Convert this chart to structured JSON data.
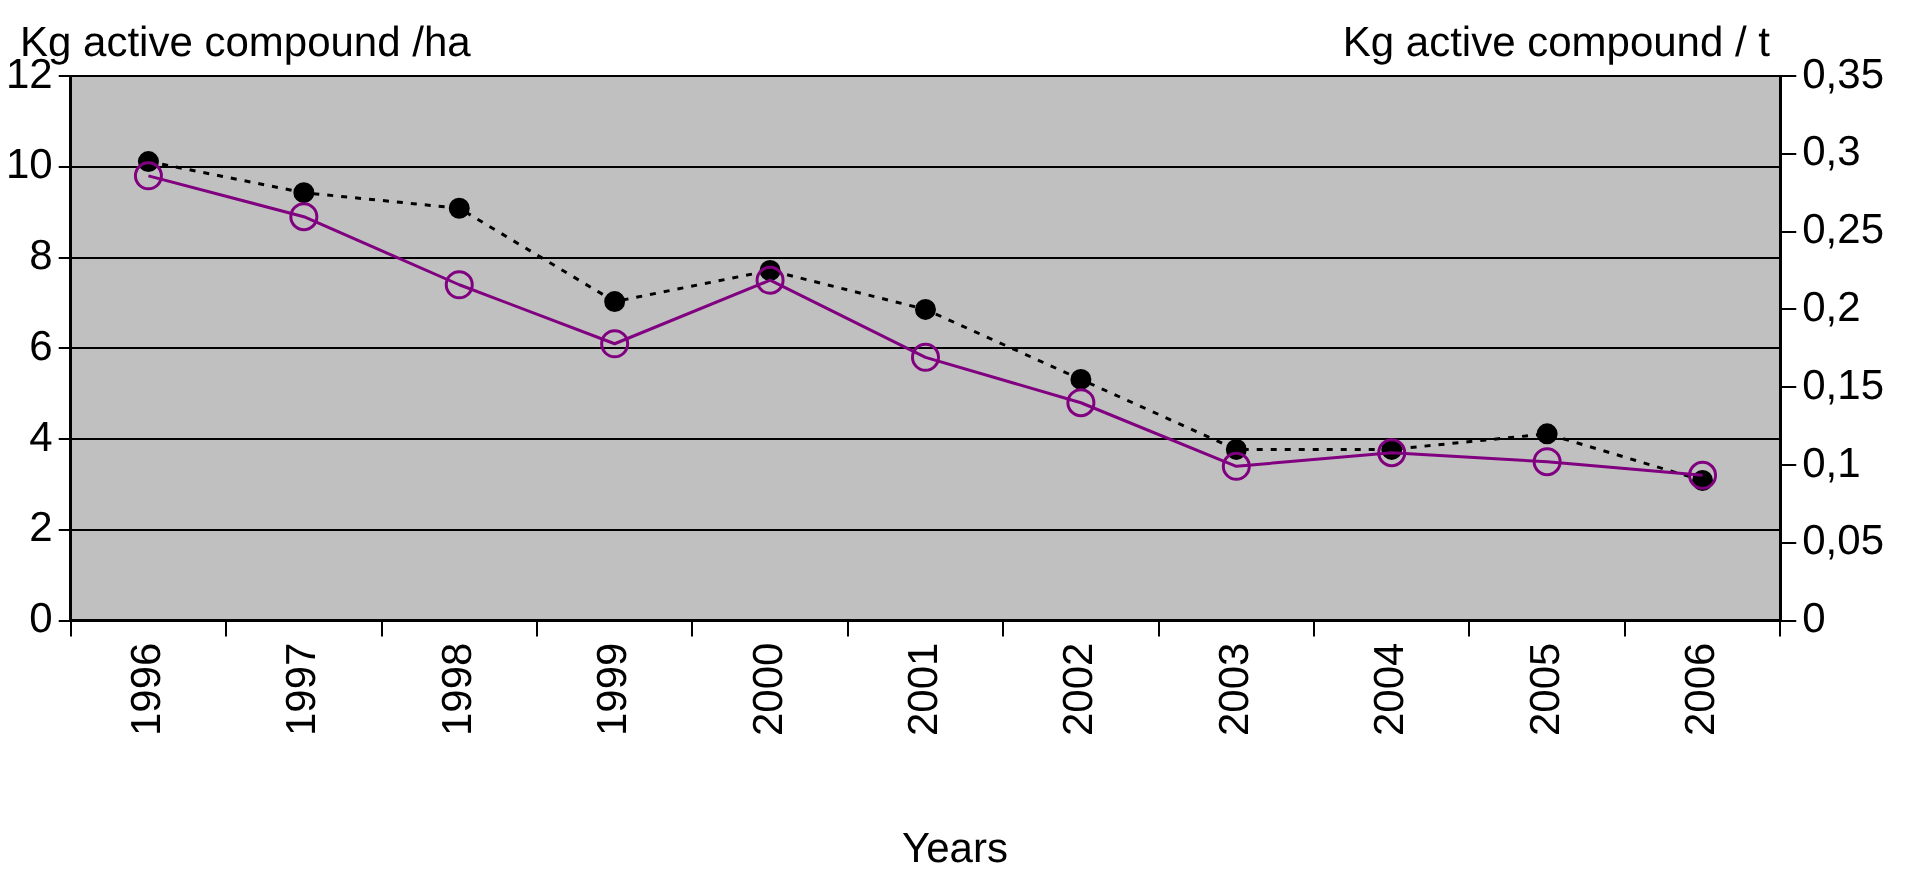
{
  "chart_data": {
    "type": "line",
    "ylabel": "Kg active compound /ha",
    "y2label": "Kg active compound / t",
    "xlabel": "Years",
    "categories": [
      "1996",
      "1997",
      "1998",
      "1999",
      "2000",
      "2001",
      "2002",
      "2003",
      "2004",
      "2005",
      "2006"
    ],
    "series": [
      {
        "color": "#800080",
        "line_style": "solid",
        "axis": "y",
        "values": [
          9.8,
          8.9,
          7.4,
          6.1,
          7.5,
          5.8,
          4.8,
          3.4,
          3.7,
          3.5,
          3.2
        ]
      },
      {
        "color": "#000000",
        "line_style": "dotted",
        "axis": "y2",
        "values": [
          0.295,
          0.275,
          0.265,
          0.205,
          0.225,
          0.2,
          0.155,
          0.11,
          0.11,
          0.12,
          0.09
        ]
      }
    ],
    "ylim": [
      0,
      12
    ],
    "yticks": [
      0,
      2,
      4,
      6,
      8,
      10,
      12
    ],
    "y2lim": [
      0,
      0.35
    ],
    "y2ticks": [
      {
        "value": 0,
        "label": "0"
      },
      {
        "value": 0.05,
        "label": "0,05"
      },
      {
        "value": 0.1,
        "label": "0,1"
      },
      {
        "value": 0.15,
        "label": "0,15"
      },
      {
        "value": 0.2,
        "label": "0,2"
      },
      {
        "value": 0.25,
        "label": "0,25"
      },
      {
        "value": 0.3,
        "label": "0,3"
      },
      {
        "value": 0.35,
        "label": "0,35"
      }
    ],
    "grid": "y",
    "marker": "circle",
    "legend": false
  }
}
